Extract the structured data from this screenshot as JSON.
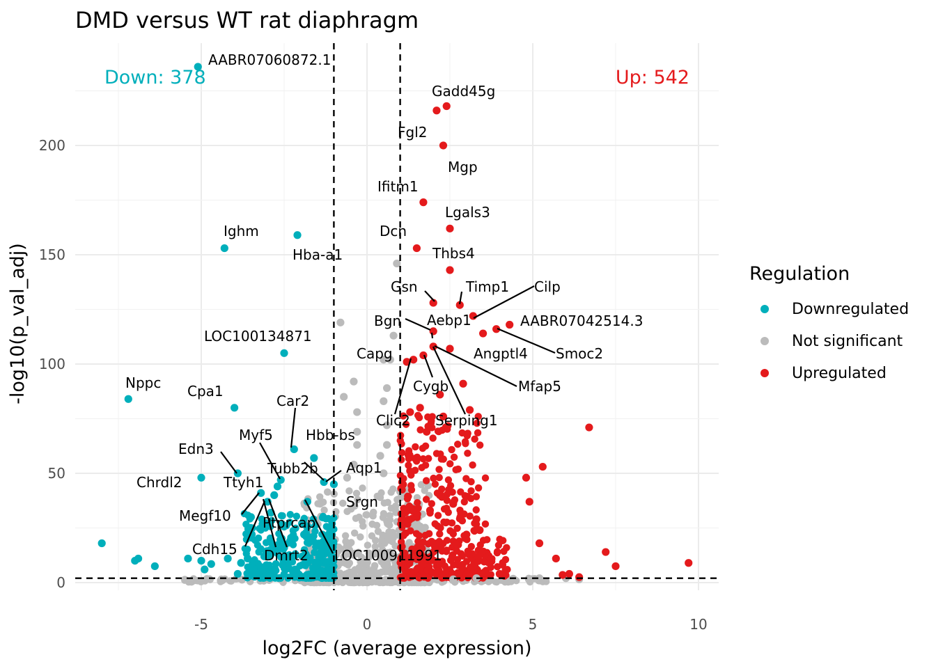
{
  "chart_data": {
    "type": "scatter",
    "title": "DMD versus WT rat diaphragm",
    "xlabel": "log2FC (average expression)",
    "ylabel": "-log10(p_val_adj)",
    "xlim": [
      -8.5,
      10.5
    ],
    "ylim": [
      -4,
      246
    ],
    "x_ticks": [
      -5,
      0,
      5,
      10
    ],
    "x_tick_labels": [
      "-5",
      "0",
      "5",
      "10"
    ],
    "y_ticks": [
      0,
      50,
      100,
      150,
      200
    ],
    "y_tick_labels": [
      "0",
      "50",
      "100",
      "150",
      "200"
    ],
    "grid": true,
    "thresholds": {
      "log2fc": [
        -1,
        1
      ],
      "neg_log10_p": 2
    },
    "legend": {
      "title": "Regulation",
      "position": "right",
      "items": [
        {
          "label": "Downregulated",
          "color": "#00AFBB"
        },
        {
          "label": "Not significant",
          "color": "#BBBBBB"
        },
        {
          "label": "Upregulated",
          "color": "#E41A1C"
        }
      ]
    },
    "counts": {
      "down_label": "Down: 378",
      "up_label": "Up: 542"
    },
    "colors": {
      "down": "#00AFBB",
      "ns": "#BBBBBB",
      "up": "#E41A1C"
    },
    "series": [
      {
        "name": "Downregulated",
        "points": [
          [
            -5.1,
            236
          ],
          [
            -4.3,
            153
          ],
          [
            -2.1,
            159
          ],
          [
            -2.5,
            105
          ],
          [
            -7.2,
            84
          ],
          [
            -4.0,
            80
          ],
          [
            -2.2,
            61
          ],
          [
            -3.9,
            50
          ],
          [
            -5.0,
            48
          ],
          [
            -1.6,
            57
          ],
          [
            -2.6,
            47
          ],
          [
            -1.3,
            46
          ],
          [
            -1.0,
            45
          ],
          [
            -3.2,
            41
          ],
          [
            -3.0,
            37
          ],
          [
            -1.8,
            37
          ],
          [
            -2.7,
            44
          ],
          [
            -2.8,
            40
          ],
          [
            -3.5,
            30
          ],
          [
            -2.9,
            32
          ],
          [
            -8.0,
            18
          ],
          [
            -6.9,
            11
          ],
          [
            -7.0,
            10
          ],
          [
            -6.4,
            7.5
          ],
          [
            -5.4,
            11
          ],
          [
            -5.0,
            10
          ],
          [
            -4.7,
            8.5
          ],
          [
            -4.2,
            11
          ],
          [
            -3.8,
            9
          ],
          [
            -3.9,
            4
          ],
          [
            -4.9,
            6
          ],
          [
            -3.6,
            11
          ],
          [
            -3.1,
            12
          ],
          [
            -2.5,
            16
          ],
          [
            -1.9,
            22
          ],
          [
            -1.5,
            9
          ],
          [
            -1.2,
            20
          ]
        ]
      },
      {
        "name": "Not significant",
        "points": [
          [
            0.9,
            146
          ],
          [
            -0.8,
            119
          ],
          [
            0.8,
            113
          ],
          [
            0.7,
            102
          ],
          [
            0.5,
            102
          ],
          [
            -0.4,
            92
          ],
          [
            0.6,
            89
          ],
          [
            -0.7,
            85
          ],
          [
            0.5,
            83
          ],
          [
            -0.3,
            78
          ],
          [
            0.6,
            72
          ],
          [
            -0.3,
            69
          ],
          [
            0.6,
            63
          ],
          [
            -0.3,
            63
          ],
          [
            0.4,
            58
          ],
          [
            -0.4,
            54
          ],
          [
            0.5,
            50
          ],
          [
            -0.6,
            48
          ],
          [
            6.0,
            2
          ],
          [
            6.4,
            1.5
          ],
          [
            5.2,
            2
          ],
          [
            4.9,
            1.5
          ],
          [
            3.3,
            2
          ],
          [
            2.6,
            1.5
          ]
        ]
      },
      {
        "name": "Upregulated",
        "points": [
          [
            2.4,
            218
          ],
          [
            2.1,
            216
          ],
          [
            2.3,
            200
          ],
          [
            1.7,
            174
          ],
          [
            2.5,
            162
          ],
          [
            1.5,
            153
          ],
          [
            2.5,
            143
          ],
          [
            2.0,
            128
          ],
          [
            2.8,
            127
          ],
          [
            3.2,
            122
          ],
          [
            4.3,
            118
          ],
          [
            3.9,
            116
          ],
          [
            2.0,
            115
          ],
          [
            3.5,
            114
          ],
          [
            2.0,
            108
          ],
          [
            2.5,
            107
          ],
          [
            1.7,
            104
          ],
          [
            1.4,
            102
          ],
          [
            1.2,
            101
          ],
          [
            2.9,
            91
          ],
          [
            2.2,
            86
          ],
          [
            1.6,
            80
          ],
          [
            3.1,
            79
          ],
          [
            1.3,
            78
          ],
          [
            2.3,
            76
          ],
          [
            6.7,
            71
          ],
          [
            1.8,
            69
          ],
          [
            5.3,
            53
          ],
          [
            4.8,
            48
          ],
          [
            4.9,
            37
          ],
          [
            3.3,
            29
          ],
          [
            3.4,
            24
          ],
          [
            5.2,
            18
          ],
          [
            7.2,
            14
          ],
          [
            5.7,
            11
          ],
          [
            9.7,
            9
          ],
          [
            7.5,
            7.5
          ],
          [
            2.6,
            36
          ],
          [
            3.0,
            22
          ],
          [
            2.2,
            40
          ],
          [
            1.9,
            33
          ],
          [
            4.0,
            4
          ],
          [
            6.1,
            4
          ],
          [
            5.9,
            3.5
          ],
          [
            6.4,
            2.5
          ],
          [
            3.6,
            4.5
          ],
          [
            3.0,
            3.5
          ]
        ]
      }
    ],
    "labels": [
      {
        "text": "AABR07060872.1"
      },
      {
        "text": "Gadd45g"
      },
      {
        "text": "Fgl2"
      },
      {
        "text": "Mgp"
      },
      {
        "text": "Ifitm1"
      },
      {
        "text": "Lgals3"
      },
      {
        "text": "Ighm"
      },
      {
        "text": "Dcn"
      },
      {
        "text": "Hba-a1"
      },
      {
        "text": "Thbs4"
      },
      {
        "text": "Gsn"
      },
      {
        "text": "Timp1"
      },
      {
        "text": "Cilp"
      },
      {
        "text": "Bgn"
      },
      {
        "text": "Aebp1"
      },
      {
        "text": "AABR07042514.3"
      },
      {
        "text": "LOC100134871"
      },
      {
        "text": "Capg"
      },
      {
        "text": "Angptl4"
      },
      {
        "text": "Smoc2"
      },
      {
        "text": "Nppc"
      },
      {
        "text": "Cygb"
      },
      {
        "text": "Mfap5"
      },
      {
        "text": "Cpa1"
      },
      {
        "text": "Car2"
      },
      {
        "text": "Clic2"
      },
      {
        "text": "Serping1"
      },
      {
        "text": "Myf5"
      },
      {
        "text": "Hbb-bs"
      },
      {
        "text": "Edn3"
      },
      {
        "text": "Tubb2b"
      },
      {
        "text": "Aqp1"
      },
      {
        "text": "Chrdl2"
      },
      {
        "text": "Ttyh1"
      },
      {
        "text": "Srgn"
      },
      {
        "text": "Megf10"
      },
      {
        "text": "Ptprcap"
      },
      {
        "text": "Cdh15"
      },
      {
        "text": "Dmrt2"
      },
      {
        "text": "LOC100911991"
      }
    ]
  }
}
